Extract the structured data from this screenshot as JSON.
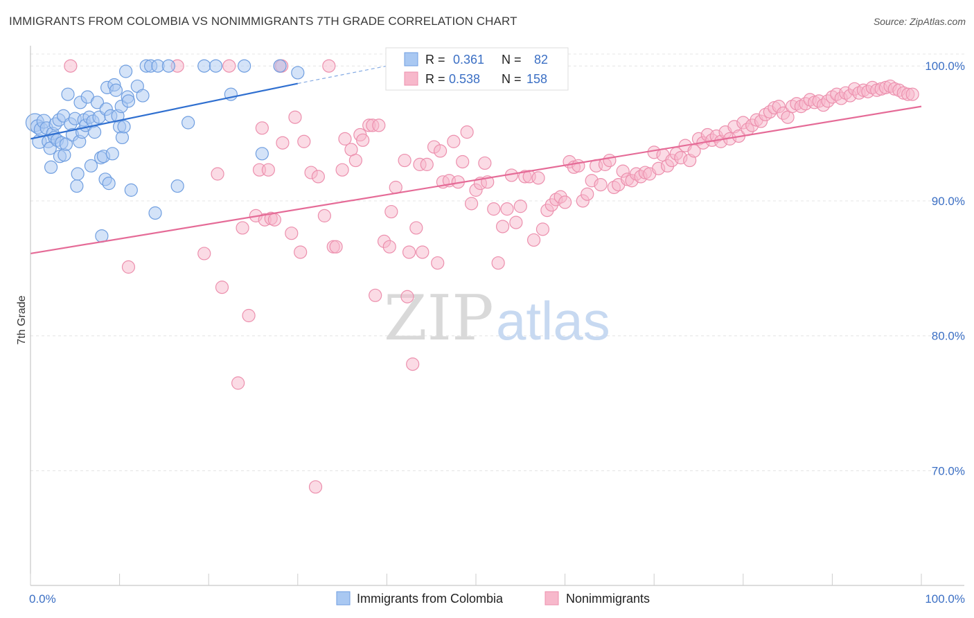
{
  "header": {
    "title": "IMMIGRANTS FROM COLOMBIA VS NONIMMIGRANTS 7TH GRADE CORRELATION CHART",
    "source": "Source: ZipAtlas.com"
  },
  "watermark": {
    "zip": "ZIP",
    "atlas": "atlas"
  },
  "colors": {
    "blue_fill": "#a9c8f2",
    "blue_stroke": "#6f9ee0",
    "blue_line": "#2f6fd0",
    "pink_fill": "#f7b8cb",
    "pink_stroke": "#ec8fad",
    "pink_line": "#e56b97",
    "grid": "#e4e4e4",
    "tick_text": "#3b6fc4"
  },
  "legend": {
    "r_label": "R =",
    "n_label": "N =",
    "rows": [
      {
        "series": "blue",
        "r": "0.361",
        "n": "82"
      },
      {
        "series": "pink",
        "r": "0.538",
        "n": "158"
      }
    ]
  },
  "bottom_legend": [
    {
      "series": "blue",
      "label": "Immigrants from Colombia"
    },
    {
      "series": "pink",
      "label": "Nonimmigrants"
    }
  ],
  "chart_data": {
    "type": "scatter",
    "ylabel": "7th Grade",
    "xlabel": "",
    "xlim": [
      0,
      100
    ],
    "ylim": [
      61.5,
      101.5
    ],
    "x_tick_labels": [
      {
        "value": 0,
        "label": "0.0%"
      },
      {
        "value": 100,
        "label": "100.0%"
      }
    ],
    "y_tick_labels": [
      {
        "value": 100,
        "label": "100.0%"
      },
      {
        "value": 90,
        "label": "90.0%"
      },
      {
        "value": 80,
        "label": "80.0%"
      },
      {
        "value": 70,
        "label": "70.0%"
      }
    ],
    "grid": true,
    "legend_position": "top-center",
    "series": [
      {
        "name": "Immigrants from Colombia",
        "color": "blue",
        "trend": {
          "x0": 0,
          "y0": 94.6,
          "x1": 30,
          "y1": 98.7,
          "dash_to_x": 40,
          "dash_to_y": 100.0
        },
        "points": [
          [
            0.5,
            95.8,
            12
          ],
          [
            0.8,
            95.5,
            9
          ],
          [
            1.0,
            94.4,
            9
          ],
          [
            1.2,
            95.3,
            9
          ],
          [
            1.5,
            95.9,
            9
          ],
          [
            1.8,
            95.4,
            8
          ],
          [
            2.0,
            94.4,
            8
          ],
          [
            2.2,
            93.9,
            8
          ],
          [
            2.3,
            92.5,
            8
          ],
          [
            2.5,
            95.0,
            8
          ],
          [
            2.7,
            94.7,
            8
          ],
          [
            2.8,
            95.7,
            8
          ],
          [
            3.0,
            94.5,
            8
          ],
          [
            3.2,
            96.0,
            8
          ],
          [
            3.3,
            93.3,
            8
          ],
          [
            3.5,
            94.3,
            8
          ],
          [
            3.7,
            96.3,
            8
          ],
          [
            3.8,
            93.4,
            8
          ],
          [
            4.0,
            94.2,
            8
          ],
          [
            4.2,
            97.9,
            8
          ],
          [
            4.5,
            95.7,
            8
          ],
          [
            4.7,
            94.9,
            8
          ],
          [
            5.0,
            96.1,
            8
          ],
          [
            5.2,
            91.1,
            8
          ],
          [
            5.3,
            92.0,
            8
          ],
          [
            5.5,
            94.4,
            8
          ],
          [
            5.6,
            97.3,
            8
          ],
          [
            5.8,
            95.1,
            8
          ],
          [
            6.0,
            96.0,
            8
          ],
          [
            6.2,
            95.6,
            8
          ],
          [
            6.4,
            97.7,
            8
          ],
          [
            6.6,
            96.2,
            8
          ],
          [
            6.8,
            92.6,
            8
          ],
          [
            7.0,
            95.9,
            8
          ],
          [
            7.2,
            95.1,
            8
          ],
          [
            7.5,
            97.3,
            8
          ],
          [
            7.7,
            96.2,
            8
          ],
          [
            7.9,
            93.2,
            8
          ],
          [
            8.0,
            87.4,
            8
          ],
          [
            8.2,
            93.3,
            8
          ],
          [
            8.4,
            91.6,
            8
          ],
          [
            8.5,
            96.8,
            8
          ],
          [
            8.6,
            98.4,
            8
          ],
          [
            8.8,
            91.3,
            8
          ],
          [
            9.0,
            96.3,
            8
          ],
          [
            9.2,
            93.5,
            8
          ],
          [
            9.4,
            98.6,
            8
          ],
          [
            9.6,
            98.2,
            8
          ],
          [
            9.8,
            96.3,
            8
          ],
          [
            10.0,
            95.5,
            8
          ],
          [
            10.2,
            97.0,
            8
          ],
          [
            10.3,
            94.7,
            8
          ],
          [
            10.5,
            95.5,
            8
          ],
          [
            10.7,
            99.6,
            8
          ],
          [
            10.9,
            97.7,
            8
          ],
          [
            11.0,
            97.4,
            8
          ],
          [
            11.3,
            90.8,
            8
          ],
          [
            12.0,
            98.5,
            8
          ],
          [
            12.6,
            97.8,
            8
          ],
          [
            13.0,
            100.0,
            8
          ],
          [
            13.5,
            100.0,
            8
          ],
          [
            14.0,
            89.1,
            8
          ],
          [
            14.3,
            100.0,
            8
          ],
          [
            15.5,
            100.0,
            8
          ],
          [
            16.5,
            91.1,
            8
          ],
          [
            17.7,
            95.8,
            8
          ],
          [
            19.5,
            100.0,
            8
          ],
          [
            20.8,
            100.0,
            8
          ],
          [
            22.5,
            97.9,
            8
          ],
          [
            24.0,
            100.0,
            8
          ],
          [
            26.0,
            93.5,
            8
          ],
          [
            28.0,
            100.0,
            8
          ],
          [
            30.0,
            99.5,
            8
          ]
        ]
      },
      {
        "name": "Nonimmigrants",
        "color": "pink",
        "trend": {
          "x0": 0,
          "y0": 86.1,
          "x1": 100,
          "y1": 97.0
        },
        "points": [
          [
            4.5,
            100.0,
            8
          ],
          [
            11.0,
            85.1,
            8
          ],
          [
            16.5,
            100.0,
            8
          ],
          [
            19.5,
            86.1,
            8
          ],
          [
            21.0,
            92.0,
            8
          ],
          [
            21.5,
            83.6,
            8
          ],
          [
            22.3,
            100.0,
            8
          ],
          [
            23.3,
            76.5,
            8
          ],
          [
            23.8,
            88.0,
            8
          ],
          [
            24.5,
            81.5,
            8
          ],
          [
            25.3,
            88.9,
            8
          ],
          [
            25.7,
            92.3,
            8
          ],
          [
            26.0,
            95.4,
            8
          ],
          [
            26.3,
            88.6,
            8
          ],
          [
            26.7,
            92.3,
            8
          ],
          [
            27.0,
            88.7,
            8
          ],
          [
            27.4,
            88.6,
            8
          ],
          [
            28.0,
            100.0,
            8
          ],
          [
            28.2,
            100.0,
            8
          ],
          [
            28.3,
            94.3,
            8
          ],
          [
            29.3,
            87.6,
            8
          ],
          [
            29.7,
            96.2,
            8
          ],
          [
            30.3,
            86.2,
            8
          ],
          [
            30.7,
            94.4,
            8
          ],
          [
            31.5,
            92.1,
            8
          ],
          [
            32.0,
            68.8,
            8
          ],
          [
            32.3,
            91.8,
            8
          ],
          [
            33.0,
            88.9,
            8
          ],
          [
            33.5,
            100.0,
            8
          ],
          [
            34.0,
            86.6,
            8
          ],
          [
            34.3,
            86.6,
            8
          ],
          [
            35.0,
            92.3,
            8
          ],
          [
            35.3,
            94.6,
            8
          ],
          [
            36.0,
            93.8,
            8
          ],
          [
            36.5,
            93.0,
            8
          ],
          [
            37.0,
            94.9,
            8
          ],
          [
            37.3,
            94.5,
            8
          ],
          [
            38.0,
            95.6,
            8
          ],
          [
            38.4,
            95.6,
            8
          ],
          [
            38.7,
            83.0,
            8
          ],
          [
            39.1,
            95.6,
            8
          ],
          [
            39.7,
            87.0,
            8
          ],
          [
            40.3,
            86.6,
            8
          ],
          [
            40.5,
            89.2,
            8
          ],
          [
            41.0,
            91.0,
            8
          ],
          [
            42.0,
            93.0,
            8
          ],
          [
            42.3,
            82.9,
            8
          ],
          [
            42.5,
            86.2,
            8
          ],
          [
            42.9,
            77.9,
            8
          ],
          [
            43.3,
            88.0,
            8
          ],
          [
            43.7,
            92.7,
            8
          ],
          [
            44.0,
            86.2,
            8
          ],
          [
            44.5,
            92.7,
            8
          ],
          [
            45.3,
            94.0,
            8
          ],
          [
            45.7,
            85.4,
            8
          ],
          [
            46.0,
            93.7,
            8
          ],
          [
            46.3,
            91.4,
            8
          ],
          [
            47.0,
            91.5,
            8
          ],
          [
            47.5,
            94.4,
            8
          ],
          [
            48.0,
            91.4,
            8
          ],
          [
            48.5,
            92.9,
            8
          ],
          [
            49.0,
            95.1,
            8
          ],
          [
            49.5,
            89.8,
            8
          ],
          [
            50.0,
            90.8,
            8
          ],
          [
            50.5,
            91.3,
            8
          ],
          [
            51.0,
            92.8,
            8
          ],
          [
            51.3,
            91.4,
            8
          ],
          [
            52.0,
            89.4,
            8
          ],
          [
            52.5,
            85.4,
            8
          ],
          [
            53.0,
            88.1,
            8
          ],
          [
            53.5,
            89.4,
            8
          ],
          [
            54.0,
            91.9,
            8
          ],
          [
            54.5,
            88.4,
            8
          ],
          [
            55.0,
            89.6,
            8
          ],
          [
            55.5,
            91.8,
            8
          ],
          [
            56.0,
            91.8,
            8
          ],
          [
            56.5,
            87.1,
            8
          ],
          [
            57.0,
            91.7,
            8
          ],
          [
            57.5,
            87.9,
            8
          ],
          [
            58.0,
            89.3,
            8
          ],
          [
            58.5,
            89.7,
            8
          ],
          [
            59.0,
            90.1,
            8
          ],
          [
            59.5,
            90.3,
            8
          ],
          [
            60.0,
            89.9,
            8
          ],
          [
            60.5,
            92.9,
            8
          ],
          [
            61.0,
            92.5,
            8
          ],
          [
            61.5,
            92.6,
            8
          ],
          [
            62.0,
            90.0,
            8
          ],
          [
            62.5,
            90.5,
            8
          ],
          [
            63.0,
            91.5,
            8
          ],
          [
            63.5,
            92.6,
            8
          ],
          [
            64.0,
            91.2,
            8
          ],
          [
            64.5,
            92.7,
            8
          ],
          [
            65.0,
            93.0,
            8
          ],
          [
            65.5,
            91.0,
            8
          ],
          [
            66.0,
            91.2,
            8
          ],
          [
            66.5,
            92.2,
            8
          ],
          [
            67.0,
            91.6,
            8
          ],
          [
            67.5,
            91.5,
            8
          ],
          [
            68.0,
            92.0,
            8
          ],
          [
            68.5,
            91.8,
            8
          ],
          [
            69.0,
            92.1,
            8
          ],
          [
            69.5,
            92.0,
            8
          ],
          [
            70.0,
            93.6,
            8
          ],
          [
            70.5,
            92.4,
            8
          ],
          [
            71.0,
            93.4,
            8
          ],
          [
            71.5,
            92.6,
            8
          ],
          [
            72.0,
            93.0,
            8
          ],
          [
            72.5,
            93.5,
            8
          ],
          [
            73.0,
            93.2,
            8
          ],
          [
            73.5,
            94.1,
            8
          ],
          [
            74.0,
            93.0,
            8
          ],
          [
            74.5,
            93.7,
            8
          ],
          [
            75.0,
            94.6,
            8
          ],
          [
            75.5,
            94.3,
            8
          ],
          [
            76.0,
            94.9,
            8
          ],
          [
            76.5,
            94.5,
            8
          ],
          [
            77.0,
            94.8,
            8
          ],
          [
            77.5,
            94.4,
            8
          ],
          [
            78.0,
            95.1,
            8
          ],
          [
            78.5,
            94.6,
            8
          ],
          [
            79.0,
            95.5,
            8
          ],
          [
            79.5,
            94.8,
            8
          ],
          [
            80.0,
            95.8,
            8
          ],
          [
            80.5,
            95.3,
            8
          ],
          [
            81.0,
            95.6,
            8
          ],
          [
            81.5,
            96.0,
            8
          ],
          [
            82.0,
            95.9,
            8
          ],
          [
            82.5,
            96.4,
            8
          ],
          [
            83.0,
            96.6,
            8
          ],
          [
            83.5,
            96.9,
            8
          ],
          [
            84.0,
            97.0,
            8
          ],
          [
            84.5,
            96.5,
            8
          ],
          [
            85.0,
            96.2,
            8
          ],
          [
            85.5,
            97.0,
            8
          ],
          [
            86.0,
            97.2,
            8
          ],
          [
            86.5,
            97.0,
            8
          ],
          [
            87.0,
            97.2,
            8
          ],
          [
            87.5,
            97.5,
            8
          ],
          [
            88.0,
            97.3,
            8
          ],
          [
            88.5,
            97.4,
            8
          ],
          [
            89.0,
            97.1,
            8
          ],
          [
            89.5,
            97.4,
            8
          ],
          [
            90.0,
            97.7,
            8
          ],
          [
            90.5,
            97.9,
            8
          ],
          [
            91.0,
            97.6,
            8
          ],
          [
            91.5,
            98.0,
            8
          ],
          [
            92.0,
            97.8,
            8
          ],
          [
            92.5,
            98.3,
            8
          ],
          [
            93.0,
            98.0,
            8
          ],
          [
            93.5,
            98.2,
            8
          ],
          [
            94.0,
            98.1,
            8
          ],
          [
            94.5,
            98.4,
            8
          ],
          [
            95.0,
            98.2,
            8
          ],
          [
            95.5,
            98.3,
            8
          ],
          [
            96.0,
            98.4,
            8
          ],
          [
            96.5,
            98.5,
            8
          ],
          [
            97.0,
            98.3,
            8
          ],
          [
            97.5,
            98.2,
            8
          ],
          [
            98.0,
            98.0,
            8
          ],
          [
            98.5,
            97.9,
            8
          ],
          [
            99.0,
            97.9,
            8
          ]
        ]
      }
    ]
  }
}
